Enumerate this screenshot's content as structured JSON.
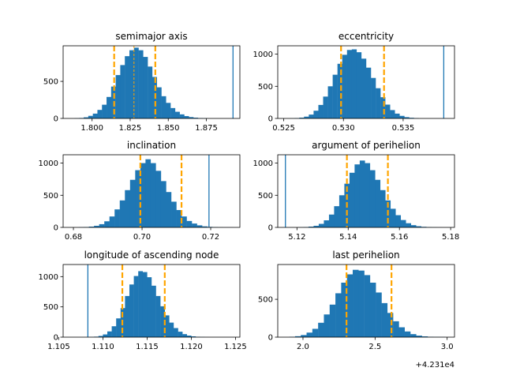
{
  "colors": {
    "bar": "#1f77b4",
    "quantile": "#ffa500",
    "axis": "#000000"
  },
  "chart_data": [
    {
      "type": "bar",
      "title": "semimajor axis",
      "xlim": [
        1.781,
        1.897
      ],
      "ylim": [
        0,
        980
      ],
      "xticks": [
        1.8,
        1.825,
        1.85,
        1.875
      ],
      "xtick_labels": [
        "1.800",
        "1.825",
        "1.850",
        "1.875"
      ],
      "yticks": [
        0,
        500
      ],
      "ytick_labels": [
        "0",
        "500"
      ],
      "bins": {
        "start": 1.7885,
        "width": 0.003,
        "counts": [
          3,
          6,
          15,
          35,
          65,
          115,
          185,
          290,
          430,
          585,
          720,
          840,
          920,
          955,
          920,
          830,
          700,
          560,
          420,
          300,
          210,
          140,
          90,
          55,
          32,
          18,
          10,
          5,
          3
        ]
      },
      "quantile_lines": [
        1.8145,
        1.8415
      ],
      "median_line": 1.8275,
      "true_value": 1.8925
    },
    {
      "type": "bar",
      "title": "eccentricity",
      "xlim": [
        0.5245,
        0.5393
      ],
      "ylim": [
        0,
        1130
      ],
      "xticks": [
        0.525,
        0.53,
        0.535
      ],
      "xtick_labels": [
        "0.525",
        "0.530",
        "0.535"
      ],
      "yticks": [
        0,
        500,
        1000
      ],
      "ytick_labels": [
        "0",
        "500",
        "1000"
      ],
      "bins": {
        "start": 0.5255,
        "width": 0.0004,
        "counts": [
          2,
          5,
          12,
          28,
          60,
          120,
          210,
          340,
          500,
          680,
          850,
          990,
          1065,
          1075,
          1030,
          930,
          790,
          630,
          470,
          330,
          215,
          130,
          75,
          40,
          20,
          10,
          4
        ]
      },
      "quantile_lines": [
        0.5298,
        0.5334
      ],
      "true_value": 0.5384
    },
    {
      "type": "bar",
      "title": "inclination",
      "xlim": [
        0.677,
        0.7285
      ],
      "ylim": [
        0,
        1130
      ],
      "xticks": [
        0.68,
        0.7,
        0.72
      ],
      "xtick_labels": [
        "0.68",
        "0.70",
        "0.72"
      ],
      "yticks": [
        0,
        500,
        1000
      ],
      "ytick_labels": [
        "0",
        "500",
        "1000"
      ],
      "bins": {
        "start": 0.6815,
        "width": 0.0015,
        "counts": [
          3,
          6,
          12,
          25,
          50,
          95,
          170,
          280,
          420,
          580,
          740,
          890,
          1000,
          1060,
          1000,
          880,
          720,
          550,
          400,
          270,
          170,
          100,
          60,
          32,
          16,
          8,
          4,
          2,
          1,
          1
        ]
      },
      "quantile_lines": [
        0.6995,
        0.7115
      ],
      "true_value": 0.7195
    },
    {
      "type": "bar",
      "title": "argument of perihelion",
      "xlim": [
        5.1125,
        5.1815
      ],
      "ylim": [
        0,
        1130
      ],
      "xticks": [
        5.12,
        5.14,
        5.16,
        5.18
      ],
      "xtick_labels": [
        "5.12",
        "5.14",
        "5.16",
        "5.18"
      ],
      "yticks": [
        0,
        500,
        1000
      ],
      "ytick_labels": [
        "0",
        "500",
        "1000"
      ],
      "bins": {
        "start": 5.1205,
        "width": 0.002,
        "counts": [
          2,
          5,
          12,
          25,
          55,
          110,
          200,
          330,
          500,
          680,
          850,
          980,
          1040,
          1000,
          890,
          740,
          580,
          420,
          290,
          190,
          115,
          65,
          35,
          18,
          9,
          4,
          2,
          1
        ]
      },
      "quantile_lines": [
        5.1395,
        5.1555
      ],
      "true_value": 5.1155
    },
    {
      "type": "bar",
      "title": "longitude of ascending node",
      "xlim": [
        1.1055,
        1.1255
      ],
      "ylim": [
        0,
        1200
      ],
      "xticks": [
        1.105,
        1.11,
        1.115,
        1.12,
        1.125
      ],
      "xtick_labels": [
        "1.105",
        "1.110",
        "1.115",
        "1.120",
        "1.125"
      ],
      "yticks": [
        0,
        500,
        1000
      ],
      "ytick_labels": [
        "0",
        "500",
        "1000"
      ],
      "bins": {
        "start": 1.1085,
        "width": 0.0005,
        "counts": [
          3,
          8,
          20,
          45,
          95,
          180,
          310,
          480,
          680,
          870,
          1010,
          1090,
          1075,
          990,
          850,
          680,
          510,
          360,
          240,
          150,
          90,
          50,
          26,
          13,
          6,
          3,
          1
        ]
      },
      "quantile_lines": [
        1.1122,
        1.117
      ],
      "true_value": 1.1083
    },
    {
      "type": "bar",
      "title": "last perihelion",
      "xlim": [
        1.825,
        3.051
      ],
      "ylim": [
        0,
        960
      ],
      "xticks": [
        2.0,
        2.5,
        3.0
      ],
      "xtick_labels": [
        "2.0",
        "2.5",
        "3.0"
      ],
      "yticks": [
        0,
        500
      ],
      "ytick_labels": [
        "0",
        "500"
      ],
      "offset_text": "+4.231e4",
      "bins": {
        "start": 1.905,
        "width": 0.04,
        "counts": [
          5,
          12,
          28,
          60,
          110,
          190,
          300,
          430,
          580,
          720,
          830,
          890,
          880,
          820,
          720,
          590,
          450,
          320,
          210,
          130,
          75,
          40,
          20,
          10,
          5,
          3,
          2
        ]
      },
      "quantile_lines": [
        2.302,
        2.614
      ]
    }
  ]
}
